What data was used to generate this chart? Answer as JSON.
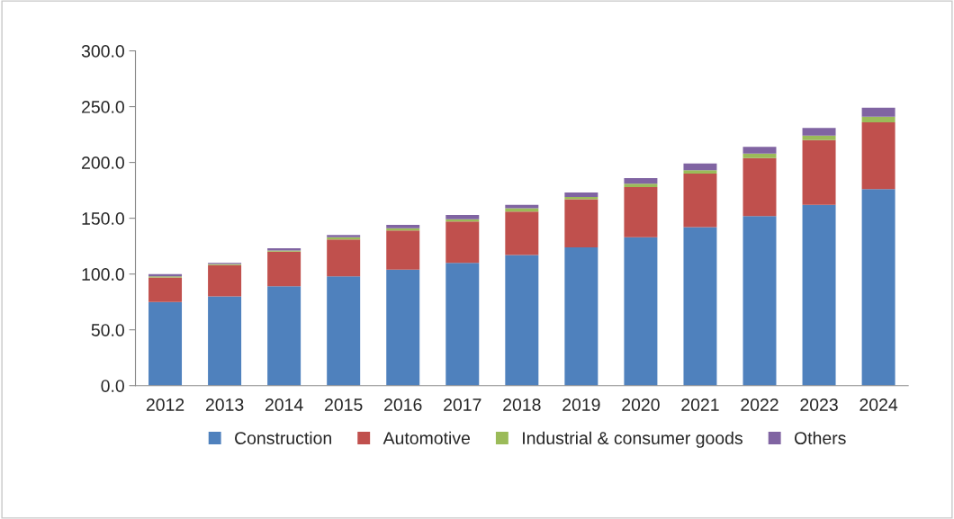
{
  "chart_data": {
    "type": "bar",
    "stacked": true,
    "categories": [
      "2012",
      "2013",
      "2014",
      "2015",
      "2016",
      "2017",
      "2018",
      "2019",
      "2020",
      "2021",
      "2022",
      "2023",
      "2024"
    ],
    "series": [
      {
        "name": "Construction",
        "color": "#4f81bd",
        "values": [
          75,
          80,
          89,
          98,
          104,
          110,
          117,
          124,
          133,
          142,
          152,
          162,
          176
        ]
      },
      {
        "name": "Automotive",
        "color": "#c0504d",
        "values": [
          22,
          28,
          31,
          33,
          35,
          37,
          39,
          43,
          45,
          48,
          52,
          58,
          60
        ]
      },
      {
        "name": "Industrial & consumer goods",
        "color": "#9bbb59",
        "values": [
          1,
          1,
          1,
          2,
          2,
          2,
          3,
          2,
          3,
          3,
          4,
          4,
          5
        ]
      },
      {
        "name": "Others",
        "color": "#8064a2",
        "values": [
          2,
          1,
          2,
          2,
          3,
          4,
          3,
          4,
          5,
          6,
          6,
          7,
          8
        ]
      }
    ],
    "ylim": [
      0,
      300
    ],
    "yticks": [
      {
        "value": 0,
        "label": "0.0"
      },
      {
        "value": 50,
        "label": "50.0"
      },
      {
        "value": 100,
        "label": "100.0"
      },
      {
        "value": 150,
        "label": "150.0"
      },
      {
        "value": 200,
        "label": "200.0"
      },
      {
        "value": 250,
        "label": "250.0"
      },
      {
        "value": 300,
        "label": "300.0"
      }
    ],
    "grid": false,
    "legend": "bottom",
    "marker": "square"
  }
}
